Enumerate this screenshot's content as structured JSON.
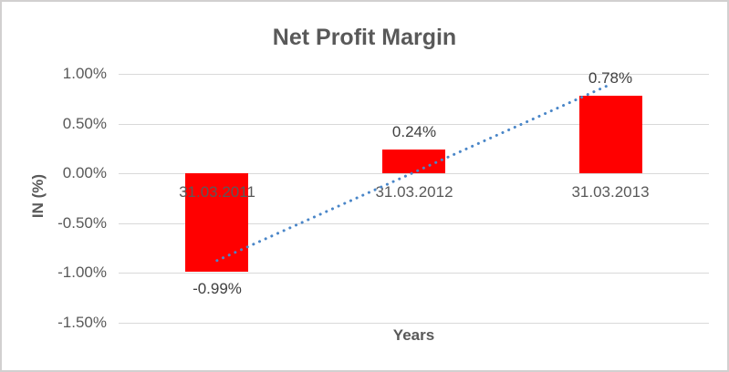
{
  "chart_data": {
    "type": "bar",
    "title": "Net Profit Margin",
    "xlabel": "Years",
    "ylabel": "IN (%)",
    "categories": [
      "31.03.2011",
      "31.03.2012",
      "31.03.2013"
    ],
    "values": [
      -0.99,
      0.24,
      0.78
    ],
    "data_labels": [
      "-0.99%",
      "0.24%",
      "0.78%"
    ],
    "yticks": [
      1.0,
      0.5,
      0.0,
      -0.5,
      -1.0,
      -1.5
    ],
    "ytick_labels": [
      "1.00%",
      "0.50%",
      "0.00%",
      "-0.50%",
      "-1.00%",
      "-1.50%"
    ],
    "ylim": [
      -1.5,
      1.0
    ],
    "grid": true,
    "legend_position": "none",
    "bar_color": "#ff0000",
    "trendline": {
      "type": "linear",
      "style": "dotted",
      "color": "#4a86c8",
      "start_value": -0.875,
      "end_value": 0.895
    },
    "colors": {
      "title_text": "#595959",
      "axis_text": "#595959",
      "data_label_text": "#404040",
      "gridline": "#d9d9d9",
      "border": "#d2d0d0",
      "background": "#ffffff"
    }
  }
}
